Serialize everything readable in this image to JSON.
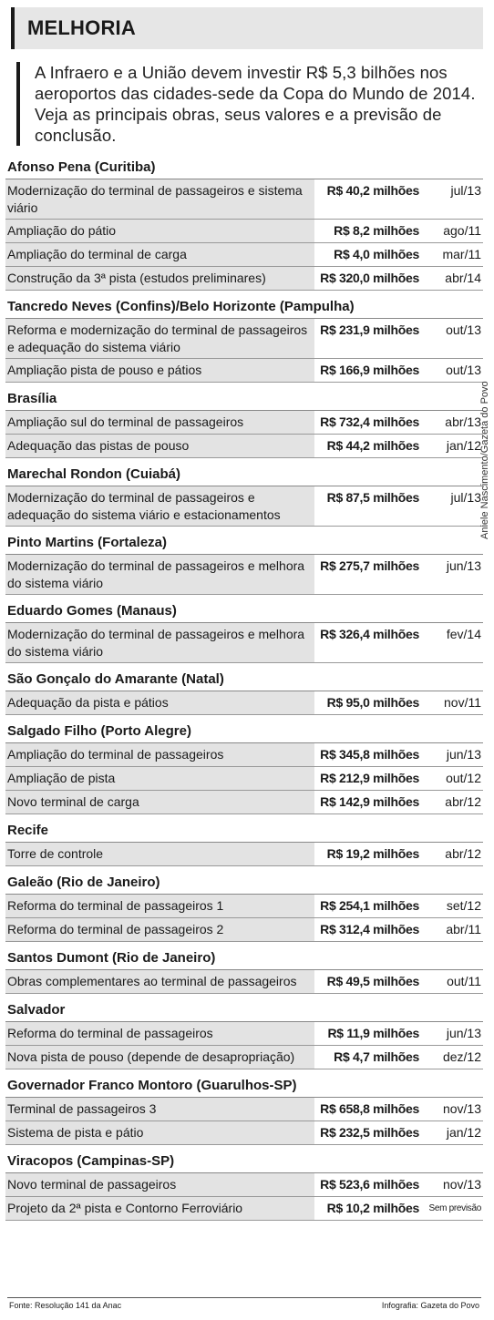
{
  "header": {
    "title": "MELHORIA"
  },
  "intro": "A Infraero e a União devem investir R$ 5,3 bilhões nos aeroportos das cidades-sede da Copa do Mundo de 2014. Veja as principais obras, seus valores e a previsão de conclusão.",
  "credit": "Aniele Nascimento/Gazeta do Povo",
  "airports": [
    {
      "name": "Afonso Pena (Curitiba)",
      "works": [
        {
          "desc": "Modernização do terminal de passageiros e sistema viário",
          "value": "R$ 40,2 milhões",
          "date": "jul/13"
        },
        {
          "desc": "Ampliação do pátio",
          "value": "R$ 8,2 milhões",
          "date": "ago/11"
        },
        {
          "desc": "Ampliação do terminal de carga",
          "value": "R$ 4,0 milhões",
          "date": "mar/11"
        },
        {
          "desc": "Construção da 3ª pista (estudos preliminares)",
          "value": "R$ 320,0 milhões",
          "date": "abr/14"
        }
      ]
    },
    {
      "name": "Tancredo Neves (Confins)/Belo Horizonte (Pampulha)",
      "works": [
        {
          "desc": "Reforma e modernização do terminal de passageiros e adequação do sistema viário",
          "value": "R$ 231,9 milhões",
          "date": "out/13"
        },
        {
          "desc": "Ampliação pista de pouso e pátios",
          "value": "R$ 166,9 milhões",
          "date": "out/13"
        }
      ]
    },
    {
      "name": "Brasília",
      "works": [
        {
          "desc": "Ampliação sul do terminal de passageiros",
          "value": "R$ 732,4 milhões",
          "date": "abr/13"
        },
        {
          "desc": "Adequação das pistas de pouso",
          "value": "R$ 44,2 milhões",
          "date": "jan/12"
        }
      ]
    },
    {
      "name": "Marechal Rondon (Cuiabá)",
      "works": [
        {
          "desc": "Modernização do terminal de passageiros e adequação do sistema viário e estacionamentos",
          "value": "R$ 87,5 milhões",
          "date": "jul/13"
        }
      ]
    },
    {
      "name": "Pinto Martins (Fortaleza)",
      "works": [
        {
          "desc": "Modernização do terminal de passageiros e melhora do sistema viário",
          "value": "R$ 275,7 milhões",
          "date": "jun/13"
        }
      ]
    },
    {
      "name": "Eduardo Gomes (Manaus)",
      "works": [
        {
          "desc": "Modernização do terminal de passageiros e melhora do sistema viário",
          "value": "R$ 326,4 milhões",
          "date": "fev/14"
        }
      ]
    },
    {
      "name": "São Gonçalo do Amarante (Natal)",
      "works": [
        {
          "desc": "Adequação da pista e pátios",
          "value": "R$ 95,0 milhões",
          "date": "nov/11"
        }
      ]
    },
    {
      "name": "Salgado Filho (Porto Alegre)",
      "works": [
        {
          "desc": "Ampliação do terminal de passageiros",
          "value": "R$ 345,8 milhões",
          "date": "jun/13"
        },
        {
          "desc": "Ampliação de pista",
          "value": "R$ 212,9 milhões",
          "date": "out/12"
        },
        {
          "desc": "Novo terminal de carga",
          "value": "R$ 142,9 milhões",
          "date": "abr/12"
        }
      ]
    },
    {
      "name": "Recife",
      "works": [
        {
          "desc": "Torre de controle",
          "value": "R$ 19,2 milhões",
          "date": "abr/12"
        }
      ]
    },
    {
      "name": "Galeão (Rio de Janeiro)",
      "works": [
        {
          "desc": "Reforma do terminal de passageiros 1",
          "value": "R$ 254,1 milhões",
          "date": "set/12"
        },
        {
          "desc": "Reforma do terminal de passageiros 2",
          "value": "R$ 312,4 milhões",
          "date": "abr/11"
        }
      ]
    },
    {
      "name": "Santos Dumont (Rio de Janeiro)",
      "works": [
        {
          "desc": "Obras complementares ao terminal de passageiros",
          "value": "R$ 49,5 milhões",
          "date": "out/11"
        }
      ]
    },
    {
      "name": "Salvador",
      "works": [
        {
          "desc": "Reforma do terminal de passageiros",
          "value": "R$ 11,9 milhões",
          "date": "jun/13"
        },
        {
          "desc": "Nova pista de pouso (depende de desapropriação)",
          "value": "R$ 4,7 milhões",
          "date": "dez/12"
        }
      ]
    },
    {
      "name": "Governador Franco Montoro (Guarulhos-SP)",
      "works": [
        {
          "desc": "Terminal de passageiros 3",
          "value": "R$ 658,8 milhões",
          "date": "nov/13"
        },
        {
          "desc": "Sistema de pista e pátio",
          "value": "R$ 232,5 milhões",
          "date": "jan/12"
        }
      ]
    },
    {
      "name": "Viracopos (Campinas-SP)",
      "works": [
        {
          "desc": "Novo terminal de passageiros",
          "value": "R$ 523,6 milhões",
          "date": "nov/13"
        },
        {
          "desc": "Projeto da 2ª pista e Contorno Ferroviário",
          "value": "R$ 10,2 milhões",
          "date": "Sem previsão"
        }
      ]
    }
  ],
  "footer": {
    "source": "Fonte: Resolução 141 da Anac",
    "infographic": "Infografia: Gazeta do Povo"
  }
}
